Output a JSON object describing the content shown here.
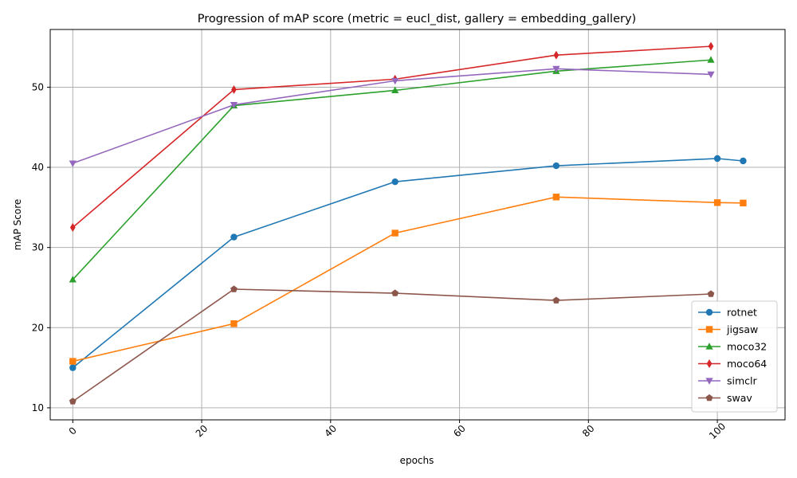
{
  "chart_data": {
    "type": "line",
    "title": "Progression of mAP score (metric = eucl_dist, gallery = embedding_gallery)",
    "xlabel": "epochs",
    "ylabel": "mAP Score",
    "xlim": [
      -3.5,
      110.5
    ],
    "ylim": [
      8.5,
      57.2
    ],
    "xticks": [
      0,
      20,
      40,
      60,
      80,
      100
    ],
    "yticks": [
      10,
      20,
      30,
      40,
      50
    ],
    "xtick_rotation": 45,
    "grid": true,
    "legend_position": "bottom-right",
    "series": [
      {
        "name": "rotnet",
        "color": "#1f77b4",
        "marker": "circle",
        "x": [
          0,
          25,
          50,
          75,
          100,
          104
        ],
        "y": [
          15.0,
          31.3,
          38.2,
          40.2,
          41.1,
          40.8
        ]
      },
      {
        "name": "jigsaw",
        "color": "#ff7f0e",
        "marker": "square",
        "x": [
          0,
          25,
          50,
          75,
          100,
          104
        ],
        "y": [
          15.8,
          20.5,
          31.8,
          36.3,
          35.6,
          35.55
        ]
      },
      {
        "name": "moco32",
        "color": "#2ca02c",
        "marker": "triangle-up",
        "x": [
          0,
          25,
          50,
          75,
          99
        ],
        "y": [
          26.0,
          47.7,
          49.6,
          52.0,
          53.4
        ]
      },
      {
        "name": "moco64",
        "color": "#d62728",
        "marker": "diamond",
        "x": [
          0,
          25,
          50,
          75,
          99
        ],
        "y": [
          32.5,
          49.7,
          51.0,
          54.0,
          55.1
        ]
      },
      {
        "name": "simclr",
        "color": "#9467bd",
        "marker": "triangle-down",
        "x": [
          0,
          25,
          50,
          75,
          99
        ],
        "y": [
          40.5,
          47.8,
          50.8,
          52.3,
          51.6
        ]
      },
      {
        "name": "swav",
        "color": "#8c564b",
        "marker": "pentagon",
        "x": [
          0,
          25,
          50,
          75,
          99
        ],
        "y": [
          10.8,
          24.8,
          24.3,
          23.4,
          24.2
        ]
      }
    ]
  }
}
